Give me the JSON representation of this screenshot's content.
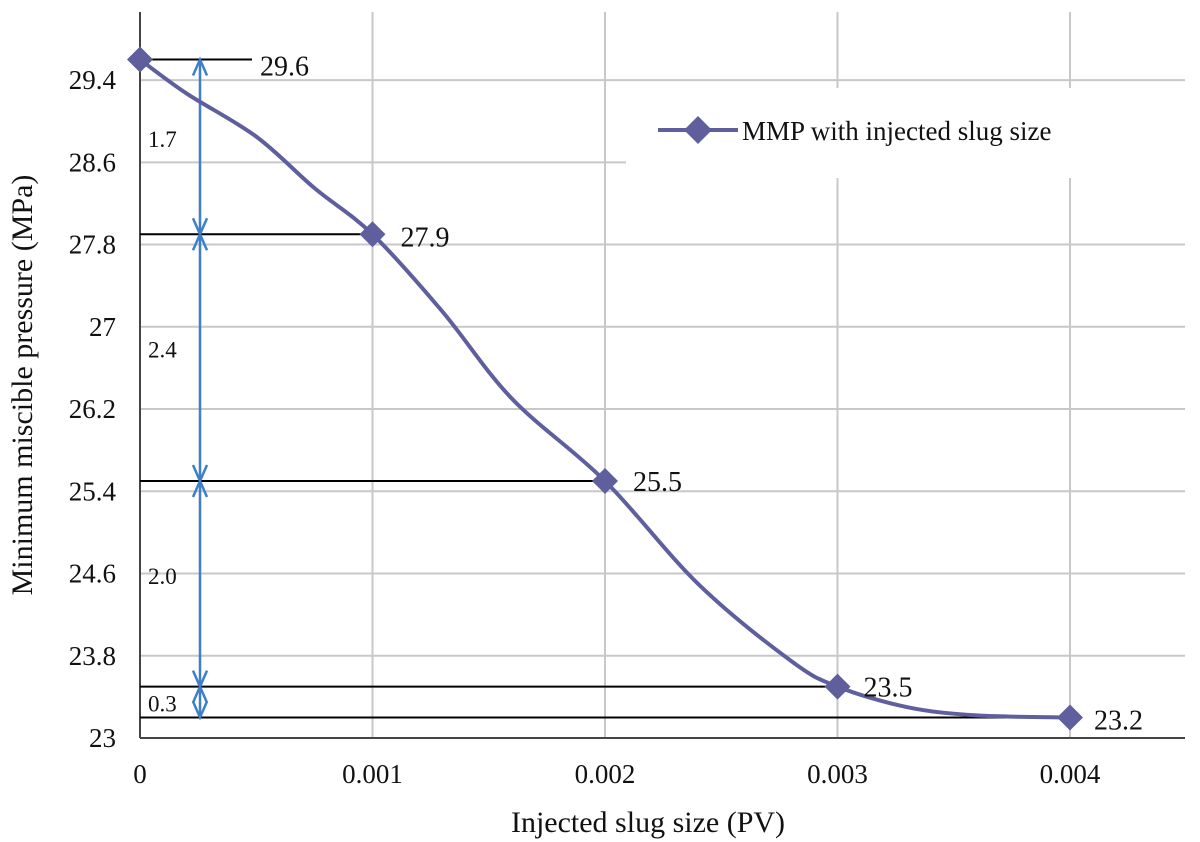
{
  "chart_data": {
    "type": "line",
    "x": [
      0,
      0.001,
      0.002,
      0.003,
      0.004
    ],
    "series": [
      {
        "name": "MMP with injected slug size",
        "values": [
          29.6,
          27.9,
          25.5,
          23.5,
          23.2
        ],
        "curve": [
          [
            0,
            29.6
          ],
          [
            0.0002,
            29.27
          ],
          [
            0.0005,
            28.85
          ],
          [
            0.00075,
            28.35
          ],
          [
            0.001,
            27.9
          ],
          [
            0.0013,
            27.15
          ],
          [
            0.0016,
            26.3
          ],
          [
            0.002,
            25.5
          ],
          [
            0.0024,
            24.5
          ],
          [
            0.0028,
            23.75
          ],
          [
            0.003,
            23.5
          ],
          [
            0.0033,
            23.3
          ],
          [
            0.0036,
            23.22
          ],
          [
            0.004,
            23.2
          ]
        ]
      }
    ],
    "data_labels": [
      "29.6",
      "27.9",
      "25.5",
      "23.5",
      "23.2"
    ],
    "differences": [
      {
        "label": "1.7",
        "from": 29.6,
        "to": 27.9
      },
      {
        "label": "2.4",
        "from": 27.9,
        "to": 25.5
      },
      {
        "label": "2.0",
        "from": 25.5,
        "to": 23.5
      },
      {
        "label": "0.3",
        "from": 23.5,
        "to": 23.2
      }
    ],
    "xlabel": "Injected slug size (PV)",
    "ylabel": "Minimum miscible pressure (MPa)",
    "x_ticks": [
      "0",
      "0.001",
      "0.002",
      "0.003",
      "0.004"
    ],
    "y_ticks": [
      "23",
      "23.8",
      "24.6",
      "25.4",
      "26.2",
      "27",
      "27.8",
      "28.6",
      "29.4"
    ],
    "y_tick_values": [
      23,
      23.8,
      24.6,
      25.4,
      26.2,
      27,
      27.8,
      28.6,
      29.4
    ],
    "xlim": [
      0,
      0.0045
    ],
    "ylim": [
      23,
      29.6
    ],
    "grid": true,
    "legend_position": "top-right",
    "colors": {
      "series": "#5f5f9e",
      "arrow": "#3f7fc8",
      "grid": "#c8c8c8"
    }
  }
}
